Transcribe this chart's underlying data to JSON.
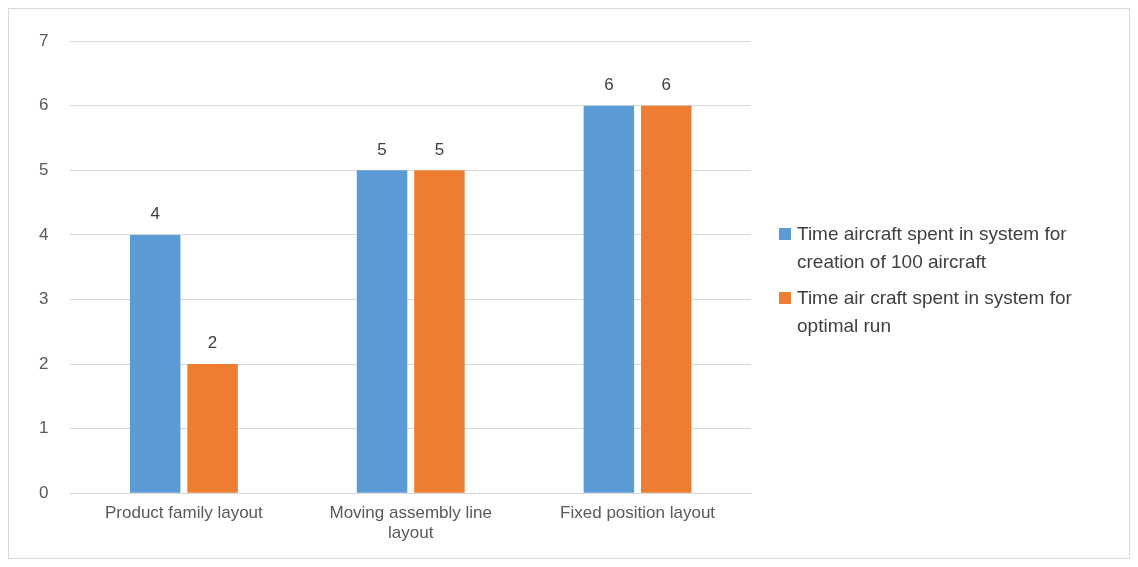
{
  "chart_data": {
    "type": "bar",
    "categories": [
      "Product family layout",
      "Moving assembly line layout",
      "Fixed position layout"
    ],
    "series": [
      {
        "name": "Time aircraft spent in system for creation of 100 aircraft",
        "color": "#5b9bd5",
        "values": [
          4,
          5,
          6
        ]
      },
      {
        "name": "Time air craft spent in system for optimal run",
        "color": "#ed7d31",
        "values": [
          2,
          5,
          6
        ]
      }
    ],
    "ylim": [
      0,
      7
    ],
    "yticks": [
      0,
      1,
      2,
      3,
      4,
      5,
      6,
      7
    ],
    "grid": "y",
    "legend": "right",
    "data_labels": true
  }
}
